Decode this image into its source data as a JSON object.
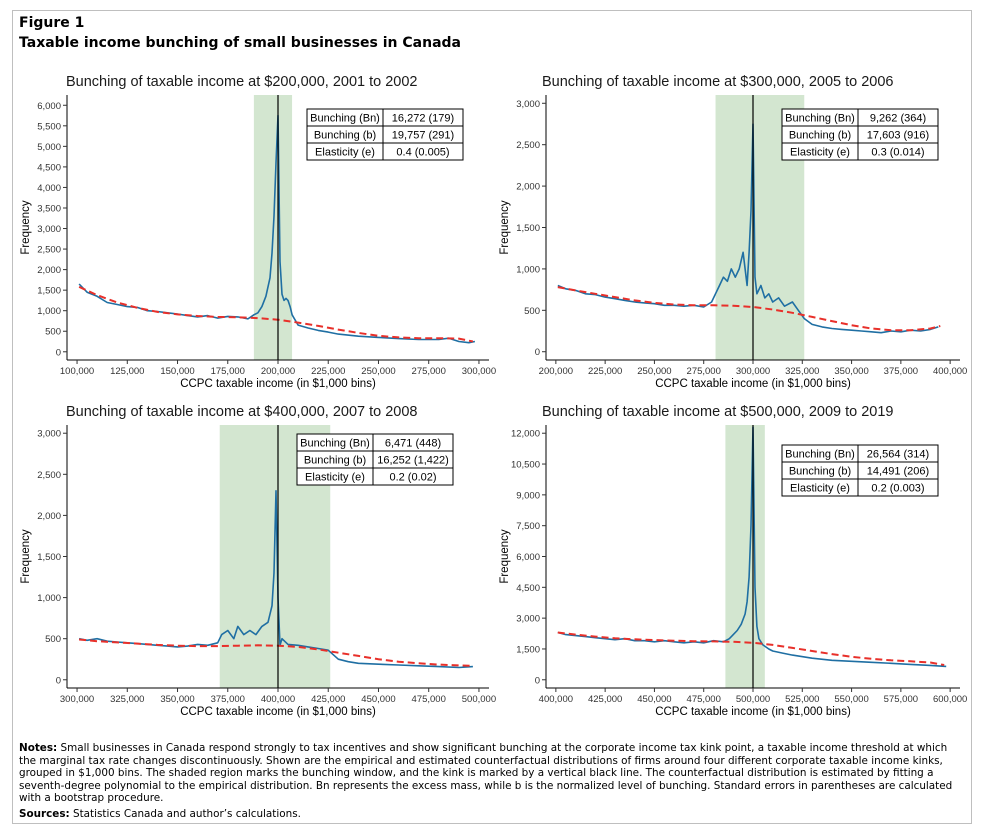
{
  "figure": {
    "label": "Figure 1",
    "title": "Taxable income bunching of small businesses in Canada"
  },
  "notes": {
    "label": "Notes:",
    "text": "Small businesses in Canada respond strongly to tax incentives and show significant bunching at the corporate income tax kink point, a taxable income threshold at which the marginal tax rate changes discontinuously. Shown are the empirical and estimated counterfactual distributions of firms around four different corporate taxable income kinks, grouped in $1,000 bins. The shaded region marks the bunching window, and the kink is marked by a vertical black line. The counterfactual distribution is estimated by fitting a seventh-degree polynomial to the empirical distribution. Bn represents the excess mass, while b is the normalized level of bunching. Standard errors in parentheses are calculated with a bootstrap procedure."
  },
  "sources": {
    "label": "Sources:",
    "text": "Statistics Canada and author’s calculations."
  },
  "colors": {
    "empirical": "#1f6fa3",
    "counterfactual": "#e8302a",
    "window": "#d3e6d0",
    "kink": "#000000"
  },
  "chart_data": [
    {
      "type": "line",
      "title": "Bunching of taxable income at $200,000, 2001 to 2002",
      "xlabel": "CCPC taxable income (in $1,000 bins)",
      "ylabel": "Frequency",
      "xlim": [
        95000,
        305000
      ],
      "ylim": [
        -200,
        6250
      ],
      "x_ticks": [
        100000,
        125000,
        150000,
        175000,
        200000,
        225000,
        250000,
        275000,
        300000
      ],
      "x_tick_labels": [
        "100,000",
        "125,000",
        "150,000",
        "175,000",
        "200,000",
        "225,000",
        "250,000",
        "275,000",
        "300,000"
      ],
      "y_ticks": [
        0,
        500,
        1000,
        1500,
        2000,
        2500,
        3000,
        3500,
        4000,
        4500,
        5000,
        5500,
        6000
      ],
      "y_tick_labels": [
        "0",
        "500",
        "1,000",
        "1,500",
        "2,000",
        "2,500",
        "3,000",
        "3,500",
        "4,000",
        "4,500",
        "5,000",
        "5,500",
        "6,000"
      ],
      "kink": 200000,
      "window": [
        188000,
        207000
      ],
      "legend_position": "top-right",
      "stats_table": [
        [
          "Bunching (Bn)",
          "16,272 (179)"
        ],
        [
          "Bunching (b)",
          "19,757 (291)"
        ],
        [
          "Elasticity (e)",
          "0.4 (0.005)"
        ]
      ],
      "series": [
        {
          "name": "Empirical distribution",
          "x": [
            101000,
            105000,
            110000,
            115000,
            120000,
            125000,
            130000,
            135000,
            140000,
            145000,
            150000,
            155000,
            160000,
            165000,
            170000,
            175000,
            180000,
            185000,
            188000,
            190000,
            192000,
            194000,
            196000,
            197000,
            198000,
            199000,
            200000,
            201000,
            202000,
            203000,
            204000,
            205000,
            206000,
            207000,
            210000,
            215000,
            220000,
            225000,
            230000,
            240000,
            250000,
            260000,
            270000,
            280000,
            285000,
            290000,
            295000,
            298000
          ],
          "values": [
            1650,
            1450,
            1350,
            1200,
            1150,
            1100,
            1080,
            1000,
            980,
            950,
            920,
            880,
            850,
            880,
            820,
            860,
            850,
            800,
            900,
            950,
            1100,
            1350,
            1800,
            2400,
            3300,
            4600,
            5750,
            2200,
            1400,
            1250,
            1300,
            1250,
            1100,
            900,
            650,
            580,
            520,
            480,
            430,
            380,
            350,
            320,
            300,
            300,
            330,
            250,
            220,
            250
          ]
        },
        {
          "name": "Counterfactual distribution",
          "x": [
            101000,
            110000,
            120000,
            130000,
            140000,
            150000,
            160000,
            170000,
            180000,
            190000,
            200000,
            210000,
            220000,
            230000,
            240000,
            250000,
            260000,
            270000,
            280000,
            290000,
            297000
          ],
          "values": [
            1580,
            1380,
            1200,
            1070,
            970,
            910,
            870,
            850,
            840,
            820,
            780,
            710,
            630,
            540,
            460,
            390,
            350,
            330,
            330,
            320,
            250
          ]
        }
      ]
    },
    {
      "type": "line",
      "title": "Bunching of taxable income at $300,000, 2005 to 2006",
      "xlabel": "CCPC taxable income (in $1,000 bins)",
      "ylabel": "Frequency",
      "xlim": [
        195000,
        405000
      ],
      "ylim": [
        -100,
        3100
      ],
      "x_ticks": [
        200000,
        225000,
        250000,
        275000,
        300000,
        325000,
        350000,
        375000,
        400000
      ],
      "x_tick_labels": [
        "200,000",
        "225,000",
        "250,000",
        "275,000",
        "300,000",
        "325,000",
        "350,000",
        "375,000",
        "400,000"
      ],
      "y_ticks": [
        0,
        500,
        1000,
        1500,
        2000,
        2500,
        3000
      ],
      "y_tick_labels": [
        "0",
        "500",
        "1,000",
        "1,500",
        "2,000",
        "2,500",
        "3,000"
      ],
      "kink": 300000,
      "window": [
        281000,
        326000
      ],
      "legend_position": "top-right",
      "stats_table": [
        [
          "Bunching (Bn)",
          "9,262 (364)"
        ],
        [
          "Bunching (b)",
          "17,603 (916)"
        ],
        [
          "Elasticity (e)",
          "0.3 (0.014)"
        ]
      ],
      "series": [
        {
          "name": "Empirical distribution",
          "x": [
            201000,
            205000,
            210000,
            215000,
            220000,
            225000,
            230000,
            235000,
            240000,
            245000,
            250000,
            255000,
            260000,
            265000,
            270000,
            275000,
            279000,
            281000,
            283000,
            285000,
            287000,
            289000,
            291000,
            293000,
            295000,
            297000,
            298000,
            299000,
            300000,
            301000,
            302000,
            304000,
            306000,
            308000,
            310000,
            313000,
            316000,
            320000,
            323000,
            326000,
            330000,
            335000,
            340000,
            345000,
            350000,
            355000,
            360000,
            365000,
            370000,
            375000,
            380000,
            385000,
            390000,
            394000
          ],
          "values": [
            800,
            760,
            740,
            700,
            690,
            660,
            640,
            620,
            600,
            590,
            580,
            560,
            560,
            550,
            560,
            540,
            600,
            700,
            800,
            900,
            850,
            1000,
            900,
            1000,
            1200,
            800,
            1200,
            1700,
            2750,
            900,
            700,
            800,
            650,
            700,
            600,
            650,
            550,
            600,
            500,
            400,
            330,
            300,
            280,
            270,
            260,
            250,
            240,
            230,
            250,
            240,
            260,
            250,
            270,
            300
          ]
        },
        {
          "name": "Counterfactual distribution",
          "x": [
            201000,
            210000,
            220000,
            230000,
            240000,
            250000,
            260000,
            270000,
            280000,
            290000,
            300000,
            310000,
            320000,
            330000,
            340000,
            350000,
            360000,
            370000,
            380000,
            390000,
            395000
          ],
          "values": [
            780,
            740,
            700,
            660,
            620,
            590,
            570,
            560,
            560,
            555,
            540,
            510,
            470,
            420,
            370,
            320,
            280,
            260,
            260,
            280,
            310
          ]
        }
      ]
    },
    {
      "type": "line",
      "title": "Bunching of taxable income at $400,000, 2007 to 2008",
      "xlabel": "CCPC taxable income (in $1,000 bins)",
      "ylabel": "Frequency",
      "xlim": [
        295000,
        505000
      ],
      "ylim": [
        -100,
        3100
      ],
      "x_ticks": [
        300000,
        325000,
        350000,
        375000,
        400000,
        425000,
        450000,
        475000,
        500000
      ],
      "x_tick_labels": [
        "300,000",
        "325,000",
        "350,000",
        "375,000",
        "400,000",
        "425,000",
        "450,000",
        "475,000",
        "500,000"
      ],
      "y_ticks": [
        0,
        500,
        1000,
        1500,
        2000,
        2500,
        3000
      ],
      "y_tick_labels": [
        "0",
        "500",
        "1,000",
        "1,500",
        "2,000",
        "2,500",
        "3,000"
      ],
      "kink": 400000,
      "window": [
        371000,
        426000
      ],
      "legend_position": "top-right",
      "stats_table": [
        [
          "Bunching (Bn)",
          "6,471 (448)"
        ],
        [
          "Bunching (b)",
          "16,252 (1,422)"
        ],
        [
          "Elasticity (e)",
          "0.2 (0.02)"
        ]
      ],
      "series": [
        {
          "name": "Empirical distribution",
          "x": [
            301000,
            305000,
            310000,
            315000,
            320000,
            325000,
            330000,
            335000,
            340000,
            345000,
            350000,
            355000,
            360000,
            365000,
            370000,
            372000,
            375000,
            378000,
            380000,
            383000,
            386000,
            389000,
            392000,
            395000,
            397000,
            398000,
            399000,
            400000,
            401000,
            402000,
            405000,
            410000,
            415000,
            420000,
            425000,
            430000,
            435000,
            440000,
            450000,
            460000,
            470000,
            480000,
            490000,
            497000
          ],
          "values": [
            500,
            480,
            500,
            470,
            460,
            450,
            440,
            430,
            420,
            410,
            400,
            410,
            430,
            420,
            450,
            550,
            600,
            500,
            650,
            550,
            600,
            550,
            650,
            700,
            900,
            1300,
            2300,
            1000,
            420,
            500,
            430,
            420,
            400,
            380,
            360,
            250,
            220,
            200,
            190,
            180,
            170,
            160,
            150,
            160
          ]
        },
        {
          "name": "Counterfactual distribution",
          "x": [
            301000,
            310000,
            320000,
            330000,
            340000,
            350000,
            360000,
            370000,
            380000,
            390000,
            400000,
            410000,
            420000,
            430000,
            440000,
            450000,
            460000,
            470000,
            480000,
            490000,
            497000
          ],
          "values": [
            490,
            470,
            455,
            440,
            425,
            415,
            410,
            410,
            415,
            420,
            415,
            400,
            370,
            330,
            290,
            250,
            220,
            200,
            185,
            175,
            170
          ]
        }
      ]
    },
    {
      "type": "line",
      "title": "Bunching of taxable income at $500,000, 2009 to 2019",
      "xlabel": "CCPC taxable income (in $1,000 bins)",
      "ylabel": "Frequency",
      "xlim": [
        395000,
        605000
      ],
      "ylim": [
        -400,
        12400
      ],
      "x_ticks": [
        400000,
        425000,
        450000,
        475000,
        500000,
        525000,
        550000,
        575000,
        600000
      ],
      "x_tick_labels": [
        "400,000",
        "425,000",
        "450,000",
        "475,000",
        "500,000",
        "525,000",
        "550,000",
        "575,000",
        "600,000"
      ],
      "y_ticks": [
        0,
        1500,
        3000,
        4500,
        6000,
        7500,
        9000,
        10500,
        12000
      ],
      "y_tick_labels": [
        "0",
        "1,500",
        "3,000",
        "4,500",
        "6,000",
        "7,500",
        "9,000",
        "10,500",
        "12,000"
      ],
      "kink": 500000,
      "window": [
        486000,
        506000
      ],
      "legend_position": "top-right",
      "stats_table": [
        [
          "Bunching (Bn)",
          "26,564 (314)"
        ],
        [
          "Bunching (b)",
          "14,491 (206)"
        ],
        [
          "Elasticity (e)",
          "0.2 (0.003)"
        ]
      ],
      "series": [
        {
          "name": "Empirical distribution",
          "x": [
            401000,
            405000,
            410000,
            415000,
            420000,
            425000,
            430000,
            435000,
            440000,
            445000,
            450000,
            455000,
            460000,
            465000,
            470000,
            475000,
            480000,
            485000,
            488000,
            490000,
            492000,
            494000,
            496000,
            497000,
            498000,
            499000,
            500000,
            501000,
            502000,
            503000,
            505000,
            508000,
            510000,
            515000,
            520000,
            530000,
            540000,
            550000,
            560000,
            570000,
            580000,
            590000,
            598000
          ],
          "values": [
            2300,
            2200,
            2150,
            2100,
            2050,
            2000,
            1950,
            2000,
            1900,
            1900,
            1850,
            1900,
            1850,
            1800,
            1850,
            1800,
            1900,
            1850,
            2000,
            2200,
            2400,
            2700,
            3200,
            3800,
            5000,
            7500,
            12300,
            4500,
            2600,
            2000,
            1700,
            1500,
            1400,
            1300,
            1200,
            1050,
            950,
            900,
            850,
            800,
            750,
            700,
            650
          ]
        },
        {
          "name": "Counterfactual distribution",
          "x": [
            401000,
            410000,
            420000,
            430000,
            440000,
            450000,
            460000,
            470000,
            480000,
            490000,
            500000,
            510000,
            520000,
            530000,
            540000,
            550000,
            560000,
            570000,
            580000,
            590000,
            597000
          ],
          "values": [
            2300,
            2200,
            2100,
            2020,
            1970,
            1930,
            1900,
            1880,
            1870,
            1850,
            1800,
            1700,
            1550,
            1400,
            1250,
            1120,
            1020,
            950,
            900,
            840,
            720
          ]
        }
      ]
    }
  ]
}
